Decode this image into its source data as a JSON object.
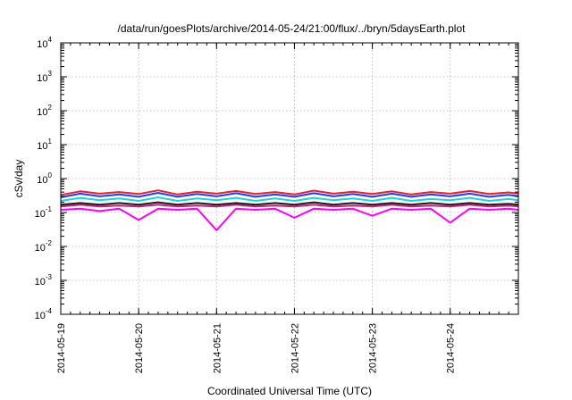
{
  "chart_data": {
    "type": "line",
    "title": "/data/run/goesPlots/archive/2014-05-24/21:00/flux/../bryn/5daysEarth.plot",
    "xlabel": "Coordinated Universal Time (UTC)",
    "ylabel": "cSv/day",
    "yscale": "log",
    "ylim": [
      0.0001,
      10000
    ],
    "xlim": [
      "2014-05-19T00:00",
      "2014-05-24T21:00"
    ],
    "x_ticks": [
      "2014-05-19",
      "2014-05-20",
      "2014-05-21",
      "2014-05-22",
      "2014-05-23",
      "2014-05-24"
    ],
    "y_ticks": [
      {
        "value": 0.0001,
        "base": "10",
        "exp": "-4"
      },
      {
        "value": 0.001,
        "base": "10",
        "exp": "-3"
      },
      {
        "value": 0.01,
        "base": "10",
        "exp": "-2"
      },
      {
        "value": 0.1,
        "base": "10",
        "exp": "-1"
      },
      {
        "value": 1,
        "base": "10",
        "exp": "0"
      },
      {
        "value": 10,
        "base": "10",
        "exp": "1"
      },
      {
        "value": 100,
        "base": "10",
        "exp": "2"
      },
      {
        "value": 1000,
        "base": "10",
        "exp": "3"
      },
      {
        "value": 10000,
        "base": "10",
        "exp": "4"
      }
    ],
    "grid": true,
    "legend": "none",
    "series": [
      {
        "color": "#e8202a",
        "values": [
          [
            "2014-05-19T00:00",
            0.33
          ],
          [
            "2014-05-19T06:00",
            0.42
          ],
          [
            "2014-05-19T12:00",
            0.36
          ],
          [
            "2014-05-19T18:00",
            0.4
          ],
          [
            "2014-05-20T00:00",
            0.35
          ],
          [
            "2014-05-20T06:00",
            0.45
          ],
          [
            "2014-05-20T12:00",
            0.34
          ],
          [
            "2014-05-20T18:00",
            0.41
          ],
          [
            "2014-05-21T00:00",
            0.36
          ],
          [
            "2014-05-21T06:00",
            0.43
          ],
          [
            "2014-05-21T12:00",
            0.35
          ],
          [
            "2014-05-21T18:00",
            0.4
          ],
          [
            "2014-05-22T00:00",
            0.34
          ],
          [
            "2014-05-22T06:00",
            0.44
          ],
          [
            "2014-05-22T12:00",
            0.36
          ],
          [
            "2014-05-22T18:00",
            0.41
          ],
          [
            "2014-05-23T00:00",
            0.35
          ],
          [
            "2014-05-23T06:00",
            0.42
          ],
          [
            "2014-05-23T12:00",
            0.34
          ],
          [
            "2014-05-23T18:00",
            0.4
          ],
          [
            "2014-05-24T00:00",
            0.36
          ],
          [
            "2014-05-24T06:00",
            0.43
          ],
          [
            "2014-05-24T12:00",
            0.35
          ],
          [
            "2014-05-24T18:00",
            0.39
          ],
          [
            "2014-05-24T21:00",
            0.36
          ]
        ]
      },
      {
        "color": "#1e40e6",
        "values": [
          [
            "2014-05-19T00:00",
            0.28
          ],
          [
            "2014-05-19T06:00",
            0.36
          ],
          [
            "2014-05-19T12:00",
            0.3
          ],
          [
            "2014-05-19T18:00",
            0.34
          ],
          [
            "2014-05-20T00:00",
            0.29
          ],
          [
            "2014-05-20T06:00",
            0.38
          ],
          [
            "2014-05-20T12:00",
            0.29
          ],
          [
            "2014-05-20T18:00",
            0.35
          ],
          [
            "2014-05-21T00:00",
            0.3
          ],
          [
            "2014-05-21T06:00",
            0.37
          ],
          [
            "2014-05-21T12:00",
            0.29
          ],
          [
            "2014-05-21T18:00",
            0.34
          ],
          [
            "2014-05-22T00:00",
            0.29
          ],
          [
            "2014-05-22T06:00",
            0.37
          ],
          [
            "2014-05-22T12:00",
            0.3
          ],
          [
            "2014-05-22T18:00",
            0.35
          ],
          [
            "2014-05-23T00:00",
            0.29
          ],
          [
            "2014-05-23T06:00",
            0.36
          ],
          [
            "2014-05-23T12:00",
            0.29
          ],
          [
            "2014-05-23T18:00",
            0.34
          ],
          [
            "2014-05-24T00:00",
            0.3
          ],
          [
            "2014-05-24T06:00",
            0.36
          ],
          [
            "2014-05-24T12:00",
            0.29
          ],
          [
            "2014-05-24T18:00",
            0.33
          ],
          [
            "2014-05-24T21:00",
            0.3
          ]
        ]
      },
      {
        "color": "#22d0d8",
        "values": [
          [
            "2014-05-19T00:00",
            0.22
          ],
          [
            "2014-05-19T06:00",
            0.27
          ],
          [
            "2014-05-19T12:00",
            0.23
          ],
          [
            "2014-05-19T18:00",
            0.26
          ],
          [
            "2014-05-20T00:00",
            0.22
          ],
          [
            "2014-05-20T06:00",
            0.28
          ],
          [
            "2014-05-20T12:00",
            0.22
          ],
          [
            "2014-05-20T18:00",
            0.26
          ],
          [
            "2014-05-21T00:00",
            0.23
          ],
          [
            "2014-05-21T06:00",
            0.27
          ],
          [
            "2014-05-21T12:00",
            0.22
          ],
          [
            "2014-05-21T18:00",
            0.26
          ],
          [
            "2014-05-22T00:00",
            0.22
          ],
          [
            "2014-05-22T06:00",
            0.27
          ],
          [
            "2014-05-22T12:00",
            0.23
          ],
          [
            "2014-05-22T18:00",
            0.26
          ],
          [
            "2014-05-23T00:00",
            0.22
          ],
          [
            "2014-05-23T06:00",
            0.27
          ],
          [
            "2014-05-23T12:00",
            0.22
          ],
          [
            "2014-05-23T18:00",
            0.25
          ],
          [
            "2014-05-24T00:00",
            0.23
          ],
          [
            "2014-05-24T06:00",
            0.27
          ],
          [
            "2014-05-24T12:00",
            0.22
          ],
          [
            "2014-05-24T18:00",
            0.25
          ],
          [
            "2014-05-24T21:00",
            0.23
          ]
        ]
      },
      {
        "color": "#1a1a1a",
        "values": [
          [
            "2014-05-19T00:00",
            0.17
          ],
          [
            "2014-05-19T06:00",
            0.19
          ],
          [
            "2014-05-19T12:00",
            0.17
          ],
          [
            "2014-05-19T18:00",
            0.19
          ],
          [
            "2014-05-20T00:00",
            0.17
          ],
          [
            "2014-05-20T06:00",
            0.2
          ],
          [
            "2014-05-20T12:00",
            0.17
          ],
          [
            "2014-05-20T18:00",
            0.19
          ],
          [
            "2014-05-21T00:00",
            0.17
          ],
          [
            "2014-05-21T06:00",
            0.19
          ],
          [
            "2014-05-21T12:00",
            0.17
          ],
          [
            "2014-05-21T18:00",
            0.19
          ],
          [
            "2014-05-22T00:00",
            0.17
          ],
          [
            "2014-05-22T06:00",
            0.2
          ],
          [
            "2014-05-22T12:00",
            0.17
          ],
          [
            "2014-05-22T18:00",
            0.19
          ],
          [
            "2014-05-23T00:00",
            0.17
          ],
          [
            "2014-05-23T06:00",
            0.19
          ],
          [
            "2014-05-23T12:00",
            0.17
          ],
          [
            "2014-05-23T18:00",
            0.19
          ],
          [
            "2014-05-24T00:00",
            0.17
          ],
          [
            "2014-05-24T06:00",
            0.19
          ],
          [
            "2014-05-24T12:00",
            0.17
          ],
          [
            "2014-05-24T18:00",
            0.18
          ],
          [
            "2014-05-24T21:00",
            0.17
          ]
        ]
      },
      {
        "color": "#c0207a",
        "values": [
          [
            "2014-05-19T00:00",
            0.15
          ],
          [
            "2014-05-19T06:00",
            0.17
          ],
          [
            "2014-05-19T12:00",
            0.15
          ],
          [
            "2014-05-19T18:00",
            0.16
          ],
          [
            "2014-05-20T00:00",
            0.15
          ],
          [
            "2014-05-20T06:00",
            0.17
          ],
          [
            "2014-05-20T12:00",
            0.15
          ],
          [
            "2014-05-20T18:00",
            0.16
          ],
          [
            "2014-05-21T00:00",
            0.15
          ],
          [
            "2014-05-21T06:00",
            0.17
          ],
          [
            "2014-05-21T12:00",
            0.15
          ],
          [
            "2014-05-21T18:00",
            0.16
          ],
          [
            "2014-05-22T00:00",
            0.15
          ],
          [
            "2014-05-22T06:00",
            0.17
          ],
          [
            "2014-05-22T12:00",
            0.15
          ],
          [
            "2014-05-22T18:00",
            0.16
          ],
          [
            "2014-05-23T00:00",
            0.15
          ],
          [
            "2014-05-23T06:00",
            0.17
          ],
          [
            "2014-05-23T12:00",
            0.15
          ],
          [
            "2014-05-23T18:00",
            0.16
          ],
          [
            "2014-05-24T00:00",
            0.15
          ],
          [
            "2014-05-24T06:00",
            0.17
          ],
          [
            "2014-05-24T12:00",
            0.15
          ],
          [
            "2014-05-24T18:00",
            0.16
          ],
          [
            "2014-05-24T21:00",
            0.15
          ]
        ]
      },
      {
        "color": "#ff00ff",
        "values": [
          [
            "2014-05-19T00:00",
            0.12
          ],
          [
            "2014-05-19T06:00",
            0.13
          ],
          [
            "2014-05-19T12:00",
            0.11
          ],
          [
            "2014-05-19T18:00",
            0.13
          ],
          [
            "2014-05-20T00:00",
            0.06
          ],
          [
            "2014-05-20T06:00",
            0.13
          ],
          [
            "2014-05-20T12:00",
            0.12
          ],
          [
            "2014-05-20T18:00",
            0.13
          ],
          [
            "2014-05-21T00:00",
            0.03
          ],
          [
            "2014-05-21T06:00",
            0.13
          ],
          [
            "2014-05-21T12:00",
            0.12
          ],
          [
            "2014-05-21T18:00",
            0.13
          ],
          [
            "2014-05-22T00:00",
            0.07
          ],
          [
            "2014-05-22T06:00",
            0.13
          ],
          [
            "2014-05-22T12:00",
            0.12
          ],
          [
            "2014-05-22T18:00",
            0.13
          ],
          [
            "2014-05-23T00:00",
            0.08
          ],
          [
            "2014-05-23T06:00",
            0.13
          ],
          [
            "2014-05-23T12:00",
            0.12
          ],
          [
            "2014-05-23T18:00",
            0.13
          ],
          [
            "2014-05-24T00:00",
            0.05
          ],
          [
            "2014-05-24T06:00",
            0.13
          ],
          [
            "2014-05-24T12:00",
            0.12
          ],
          [
            "2014-05-24T18:00",
            0.13
          ],
          [
            "2014-05-24T21:00",
            0.12
          ]
        ]
      }
    ]
  }
}
